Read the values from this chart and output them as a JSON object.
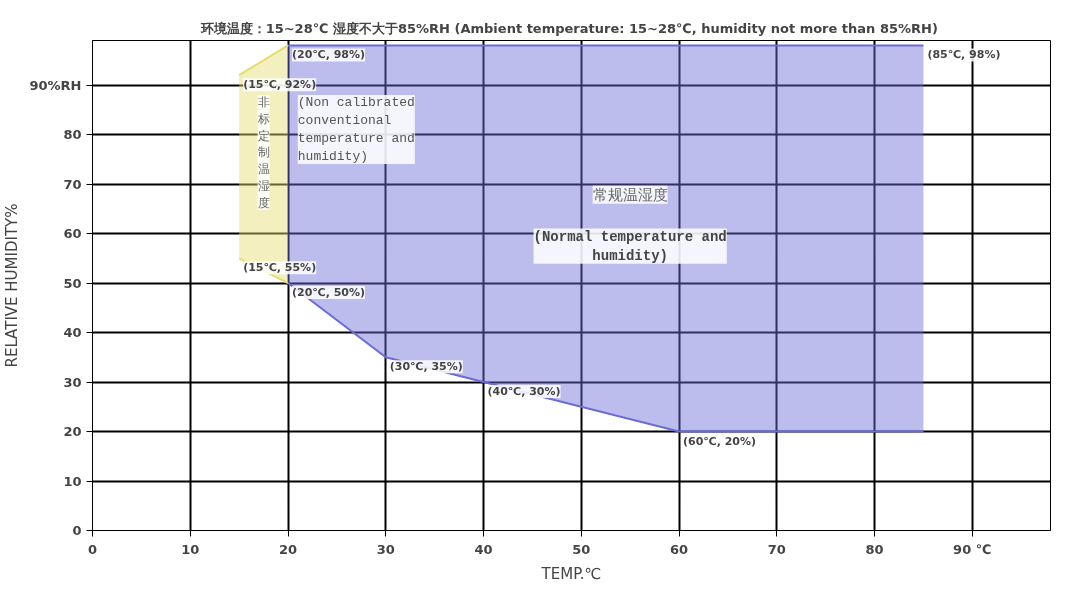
{
  "chart_data": {
    "type": "line",
    "title": "环境温度：15~28℃  湿度不大于85%RH (Ambient temperature: 15~28℃, humidity not more than 85%RH)",
    "xlabel": "TEMP.℃",
    "ylabel": "RELATIVE HUMIDITY%",
    "xlim": [
      0,
      98
    ],
    "ylim": [
      0,
      99
    ],
    "xticks": [
      0,
      10,
      20,
      30,
      40,
      50,
      60,
      70,
      80,
      {
        "value": 90,
        "label": "90 ℃"
      }
    ],
    "yticks": [
      0,
      10,
      20,
      30,
      40,
      50,
      60,
      70,
      80,
      {
        "value": 90,
        "label": "90%RH"
      }
    ],
    "grid": true,
    "series": [
      {
        "color": "#e6dc6e",
        "x": [
          15,
          20
        ],
        "values": [
          55,
          50
        ],
        "lower": [
          55,
          50
        ],
        "upper": [
          92,
          98
        ]
      },
      {
        "color": "#6a6ad8",
        "x": [
          20,
          30,
          40,
          60,
          85
        ],
        "values": [
          50,
          35,
          30,
          20,
          20
        ],
        "lower": [
          50,
          35,
          30,
          20,
          20
        ],
        "upper": [
          98,
          98,
          98,
          98,
          98
        ]
      }
    ],
    "annotations": [
      {
        "text": "(20℃, 98%)",
        "x": 20,
        "y": 98
      },
      {
        "text": "(15℃, 92%)",
        "x": 15,
        "y": 92
      },
      {
        "text": "(15℃, 55%)",
        "x": 15,
        "y": 55
      },
      {
        "text": "(20℃, 50%)",
        "x": 20,
        "y": 50
      },
      {
        "text": "(30℃, 35%)",
        "x": 30,
        "y": 35
      },
      {
        "text": "(40℃, 30%)",
        "x": 40,
        "y": 30
      },
      {
        "text": "(60℃, 20%)",
        "x": 60,
        "y": 20
      },
      {
        "text": "(85℃, 98%)",
        "x": 85,
        "y": 98
      },
      "非标定制温湿度",
      "(Non calibrated conventional temperature and humidity)",
      "常规温湿度",
      "(Normal temperature and humidity)"
    ]
  }
}
